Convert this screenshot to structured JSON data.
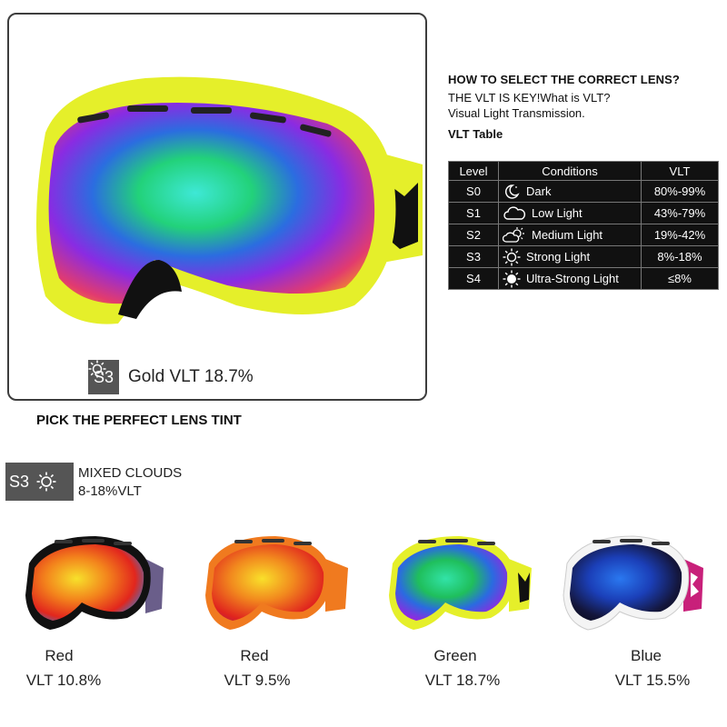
{
  "hero": {
    "badge_level": "S3",
    "badge_icon": "sun-icon",
    "caption": "Gold VLT 18.7%",
    "frame_color": "#e5ef2a"
  },
  "info": {
    "heading": "HOW TO SELECT THE CORRECT LENS?",
    "line1": "THE VLT IS KEY!What is VLT?",
    "line2": "Visual Light Transmission.",
    "table_title": "VLT Table"
  },
  "vlt_table": {
    "headers": [
      "Level",
      "Conditions",
      "VLT"
    ],
    "rows": [
      {
        "level": "S0",
        "icon": "moon-icon",
        "condition": "Dark",
        "vlt": "80%-99%"
      },
      {
        "level": "S1",
        "icon": "cloud-icon",
        "condition": "Low Light",
        "vlt": "43%-79%"
      },
      {
        "level": "S2",
        "icon": "sun-cloud-icon",
        "condition": "Medium Light",
        "vlt": "19%-42%"
      },
      {
        "level": "S3",
        "icon": "sun-icon",
        "condition": "Strong Light",
        "vlt": "8%-18%"
      },
      {
        "level": "S4",
        "icon": "bright-sun-icon",
        "condition": "Ultra-Strong Light",
        "vlt": "≤8%"
      }
    ]
  },
  "pick_title": "PICK THE PERFECT LENS TINT",
  "mixed": {
    "badge_level": "S3",
    "line1": "MIXED CLOUDS",
    "line2": "8-18%VLT"
  },
  "products": [
    {
      "color": "Red",
      "vlt": "VLT 10.8%",
      "frame": "#111111"
    },
    {
      "color": "Red",
      "vlt": "VLT 9.5%",
      "frame": "#f07a1f"
    },
    {
      "color": "Green",
      "vlt": "VLT 18.7%",
      "frame": "#e5ef2a"
    },
    {
      "color": "Blue",
      "vlt": "VLT 15.5%",
      "frame": "#f4f4f4"
    }
  ]
}
